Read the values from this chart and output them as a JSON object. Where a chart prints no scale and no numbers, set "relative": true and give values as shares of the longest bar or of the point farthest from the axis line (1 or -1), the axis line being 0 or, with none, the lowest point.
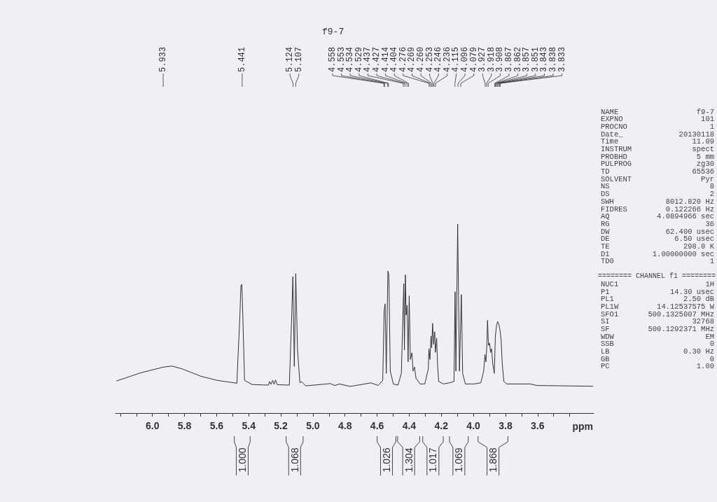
{
  "chart_data": [
    {
      "type": "line",
      "title": "f9-7",
      "xlabel": "ppm",
      "relative": true,
      "color": "#333333",
      "x": [
        6.223,
        6.077,
        5.933,
        5.88,
        5.815,
        5.699,
        5.597,
        5.474,
        5.455,
        5.449,
        5.443,
        5.437,
        5.426,
        5.379,
        5.277,
        5.27,
        5.261,
        5.251,
        5.242,
        5.233,
        5.222,
        5.147,
        5.132,
        5.125,
        5.116,
        5.107,
        5.096,
        5.081,
        5.071,
        5.045,
        4.892,
        4.864,
        4.834,
        4.768,
        4.638,
        4.594,
        4.565,
        4.556,
        4.55,
        4.543,
        4.533,
        4.527,
        4.518,
        4.499,
        4.47,
        4.449,
        4.434,
        4.43,
        4.424,
        4.419,
        4.413,
        4.407,
        4.4,
        4.393,
        4.383,
        4.376,
        4.367,
        4.358,
        4.332,
        4.303,
        4.281,
        4.277,
        4.271,
        4.264,
        4.26,
        4.254,
        4.248,
        4.241,
        4.237,
        4.229,
        4.223,
        4.216,
        4.187,
        4.15,
        4.121,
        4.114,
        4.109,
        4.098,
        4.087,
        4.075,
        4.067,
        4.05,
        3.997,
        3.954,
        3.936,
        3.928,
        3.922,
        3.916,
        3.912,
        3.906,
        3.899,
        3.893,
        3.887,
        3.879,
        3.87,
        3.863,
        3.856,
        3.849,
        3.842,
        3.834,
        3.827,
        3.82,
        3.81,
        3.791,
        3.646,
        3.605,
        3.256
      ],
      "values": [
        0.17,
        0.212,
        0.243,
        0.249,
        0.234,
        0.195,
        0.173,
        0.158,
        0.519,
        0.673,
        0.681,
        0.519,
        0.173,
        0.151,
        0.148,
        0.167,
        0.152,
        0.173,
        0.152,
        0.175,
        0.15,
        0.148,
        0.519,
        0.722,
        0.247,
        0.738,
        0.333,
        0.16,
        0.167,
        0.144,
        0.156,
        0.146,
        0.154,
        0.141,
        0.16,
        0.146,
        0.173,
        0.543,
        0.578,
        0.21,
        0.751,
        0.734,
        0.222,
        0.154,
        0.148,
        0.21,
        0.685,
        0.333,
        0.731,
        0.519,
        0.57,
        0.271,
        0.62,
        0.284,
        0.319,
        0.222,
        0.244,
        0.185,
        0.154,
        0.154,
        0.234,
        0.34,
        0.284,
        0.407,
        0.346,
        0.475,
        0.364,
        0.43,
        0.321,
        0.397,
        0.247,
        0.167,
        0.154,
        0.16,
        0.167,
        0.642,
        0.222,
        1,
        0.222,
        0.627,
        0.21,
        0.154,
        0.154,
        0.16,
        0.222,
        0.309,
        0.271,
        0.364,
        0.491,
        0.358,
        0.37,
        0.321,
        0.34,
        0.259,
        0.21,
        0.407,
        0.463,
        0.484,
        0.471,
        0.438,
        0.383,
        0.259,
        0.167,
        0.154,
        0.154,
        0.146,
        0.142
      ],
      "xlim": [
        6.23,
        3.25
      ],
      "xticks": [
        {
          "value": 6.2,
          "label": null
        },
        {
          "value": 6.1,
          "label": null
        },
        {
          "value": 6,
          "label": "6.0"
        },
        {
          "value": 5.9,
          "label": null
        },
        5.8,
        {
          "value": 5.7,
          "label": null
        },
        5.6,
        {
          "value": 5.5,
          "label": null
        },
        5.4,
        {
          "value": 5.3,
          "label": null
        },
        5.2,
        {
          "value": 5.1,
          "label": null
        },
        {
          "value": 5,
          "label": "5.0"
        },
        {
          "value": 4.9,
          "label": null
        },
        4.8,
        {
          "value": 4.7,
          "label": null
        },
        4.6,
        {
          "value": 4.5,
          "label": null
        },
        4.4,
        {
          "value": 4.3,
          "label": null
        },
        4.2,
        {
          "value": 4.1,
          "label": null
        },
        {
          "value": 4,
          "label": "4.0"
        },
        {
          "value": 3.9,
          "label": null
        },
        3.8,
        {
          "value": 3.7,
          "label": null
        },
        3.6,
        {
          "value": 3.5,
          "label": null
        },
        {
          "value": 3.4,
          "label": null
        }
      ],
      "annotations": [
        {
          "text": "5.933",
          "x": 5.933
        },
        {
          "text": "5.441",
          "x": 5.441
        },
        {
          "text": "5.124",
          "x": 5.124
        },
        {
          "text": "5.107",
          "x": 5.107
        },
        {
          "text": "4.558",
          "x": 4.558
        },
        {
          "text": "4.553",
          "x": 4.553
        },
        {
          "text": "4.534",
          "x": 4.534
        },
        {
          "text": "4.529",
          "x": 4.529
        },
        {
          "text": "4.437",
          "x": 4.437
        },
        {
          "text": "4.427",
          "x": 4.427
        },
        {
          "text": "4.414",
          "x": 4.414
        },
        {
          "text": "4.404",
          "x": 4.404
        },
        {
          "text": "4.276",
          "x": 4.276
        },
        {
          "text": "4.269",
          "x": 4.269
        },
        {
          "text": "4.260",
          "x": 4.26
        },
        {
          "text": "4.253",
          "x": 4.253
        },
        {
          "text": "4.246",
          "x": 4.246
        },
        {
          "text": "4.236",
          "x": 4.236
        },
        {
          "text": "4.115",
          "x": 4.115
        },
        {
          "text": "4.096",
          "x": 4.096
        },
        {
          "text": "4.079",
          "x": 4.079
        },
        {
          "text": "3.927",
          "x": 3.927
        },
        {
          "text": "3.918",
          "x": 3.918
        },
        {
          "text": "3.908",
          "x": 3.908
        },
        {
          "text": "3.867",
          "x": 3.867
        },
        {
          "text": "3.862",
          "x": 3.862
        },
        {
          "text": "3.857",
          "x": 3.857
        },
        {
          "text": "3.851",
          "x": 3.851
        },
        {
          "text": "3.843",
          "x": 3.843
        },
        {
          "text": "3.838",
          "x": 3.838
        },
        {
          "text": "3.833",
          "x": 3.833
        },
        "1.000",
        "1.068",
        "1.026",
        "1.304",
        "1.017",
        "1.069",
        "1.868"
      ]
    },
    {
      "type": "other",
      "annotations": [
        "NAME f9-7",
        "EXPNO 101",
        "PROCNO 1",
        "Date_ 20130118",
        "Time 11.09",
        "INSTRUM spect",
        "PROBHD 5 mm",
        "PULPROG zg30",
        "TD 65536",
        "SOLVENT Pyr",
        "NS 8",
        "DS 2",
        "SWH 8012.820 Hz",
        "FIDRES 0.122266 Hz",
        "AQ 4.0894966 sec",
        "RG 36",
        "DW 62.400 usec",
        "DE 6.50 usec",
        "TE 298.0 K",
        "D1 1.00000000 sec",
        "TD0 1"
      ]
    },
    {
      "type": "other",
      "title": "======== CHANNEL f1 ========",
      "annotations": [
        "NUC1 1H",
        "P1 14.30 usec",
        "PL1 2.50 dB",
        "PL1W 14.12537575 W",
        "SFO1 500.1325007 MHz",
        "SI 32768",
        "SF 500.1292371 MHz",
        "WDW EM",
        "SSB 0",
        "LB 0.30 Hz",
        "GB 0",
        "PC 1.00"
      ]
    }
  ]
}
